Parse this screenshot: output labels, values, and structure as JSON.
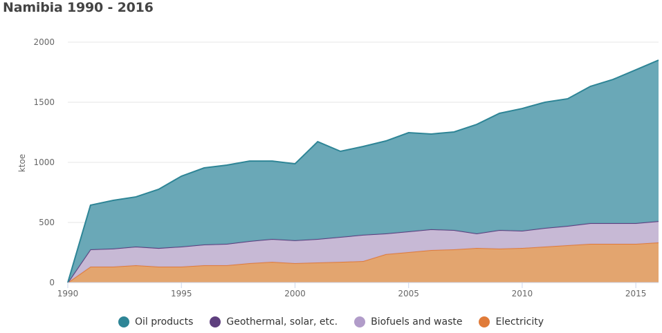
{
  "chart_data": {
    "type": "area",
    "stacked": true,
    "title": "Namibia 1990 - 2016",
    "ylabel": "ktoe",
    "xlabel": "",
    "xlim": [
      1990,
      2016
    ],
    "ylim": [
      0,
      2000
    ],
    "yticks": [
      "0",
      "500",
      "1000",
      "1500",
      "2000"
    ],
    "xticks": [
      "1990",
      "1995",
      "2000",
      "2005",
      "2010",
      "2015"
    ],
    "grid": true,
    "legend_position": "bottom",
    "x": [
      1990,
      1991,
      1992,
      1993,
      1994,
      1995,
      1996,
      1997,
      1998,
      1999,
      2000,
      2001,
      2002,
      2003,
      2004,
      2005,
      2006,
      2007,
      2008,
      2009,
      2010,
      2011,
      2012,
      2013,
      2014,
      2015,
      2016
    ],
    "series": [
      {
        "name": "Electricity",
        "color": "#e07b39",
        "fill": "#e2a067",
        "values": [
          0,
          132,
          132,
          144,
          132,
          132,
          144,
          144,
          161,
          172,
          161,
          167,
          172,
          178,
          236,
          253,
          270,
          276,
          287,
          282,
          287,
          299,
          310,
          322,
          322,
          322,
          333
        ]
      },
      {
        "name": "Biofuels and waste",
        "color": "#b19cc9",
        "fill": "#c4b5d3",
        "values": [
          0,
          144,
          150,
          155,
          155,
          167,
          172,
          178,
          184,
          190,
          190,
          195,
          207,
          219,
          172,
          172,
          173,
          161,
          121,
          155,
          144,
          154,
          160,
          171,
          171,
          171,
          177
        ]
      },
      {
        "name": "Geothermal, solar, etc.",
        "color": "#5e3f7e",
        "fill": "#6a4a8a",
        "values": [
          0,
          0,
          0,
          0,
          0,
          0,
          0,
          0,
          0,
          0,
          0,
          0,
          0,
          0,
          0,
          0,
          0,
          0,
          0,
          0,
          0,
          1,
          1,
          1,
          1,
          1,
          1
        ]
      },
      {
        "name": "Oil products",
        "color": "#2e8596",
        "fill": "#62a3b3",
        "values": [
          0,
          368,
          402,
          414,
          489,
          586,
          638,
          655,
          666,
          649,
          637,
          810,
          713,
          735,
          770,
          822,
          793,
          816,
          908,
          971,
          1017,
          1046,
          1058,
          1138,
          1196,
          1276,
          1339
        ]
      }
    ],
    "legend_order": [
      "Oil products",
      "Geothermal, solar, etc.",
      "Biofuels and waste",
      "Electricity"
    ]
  }
}
